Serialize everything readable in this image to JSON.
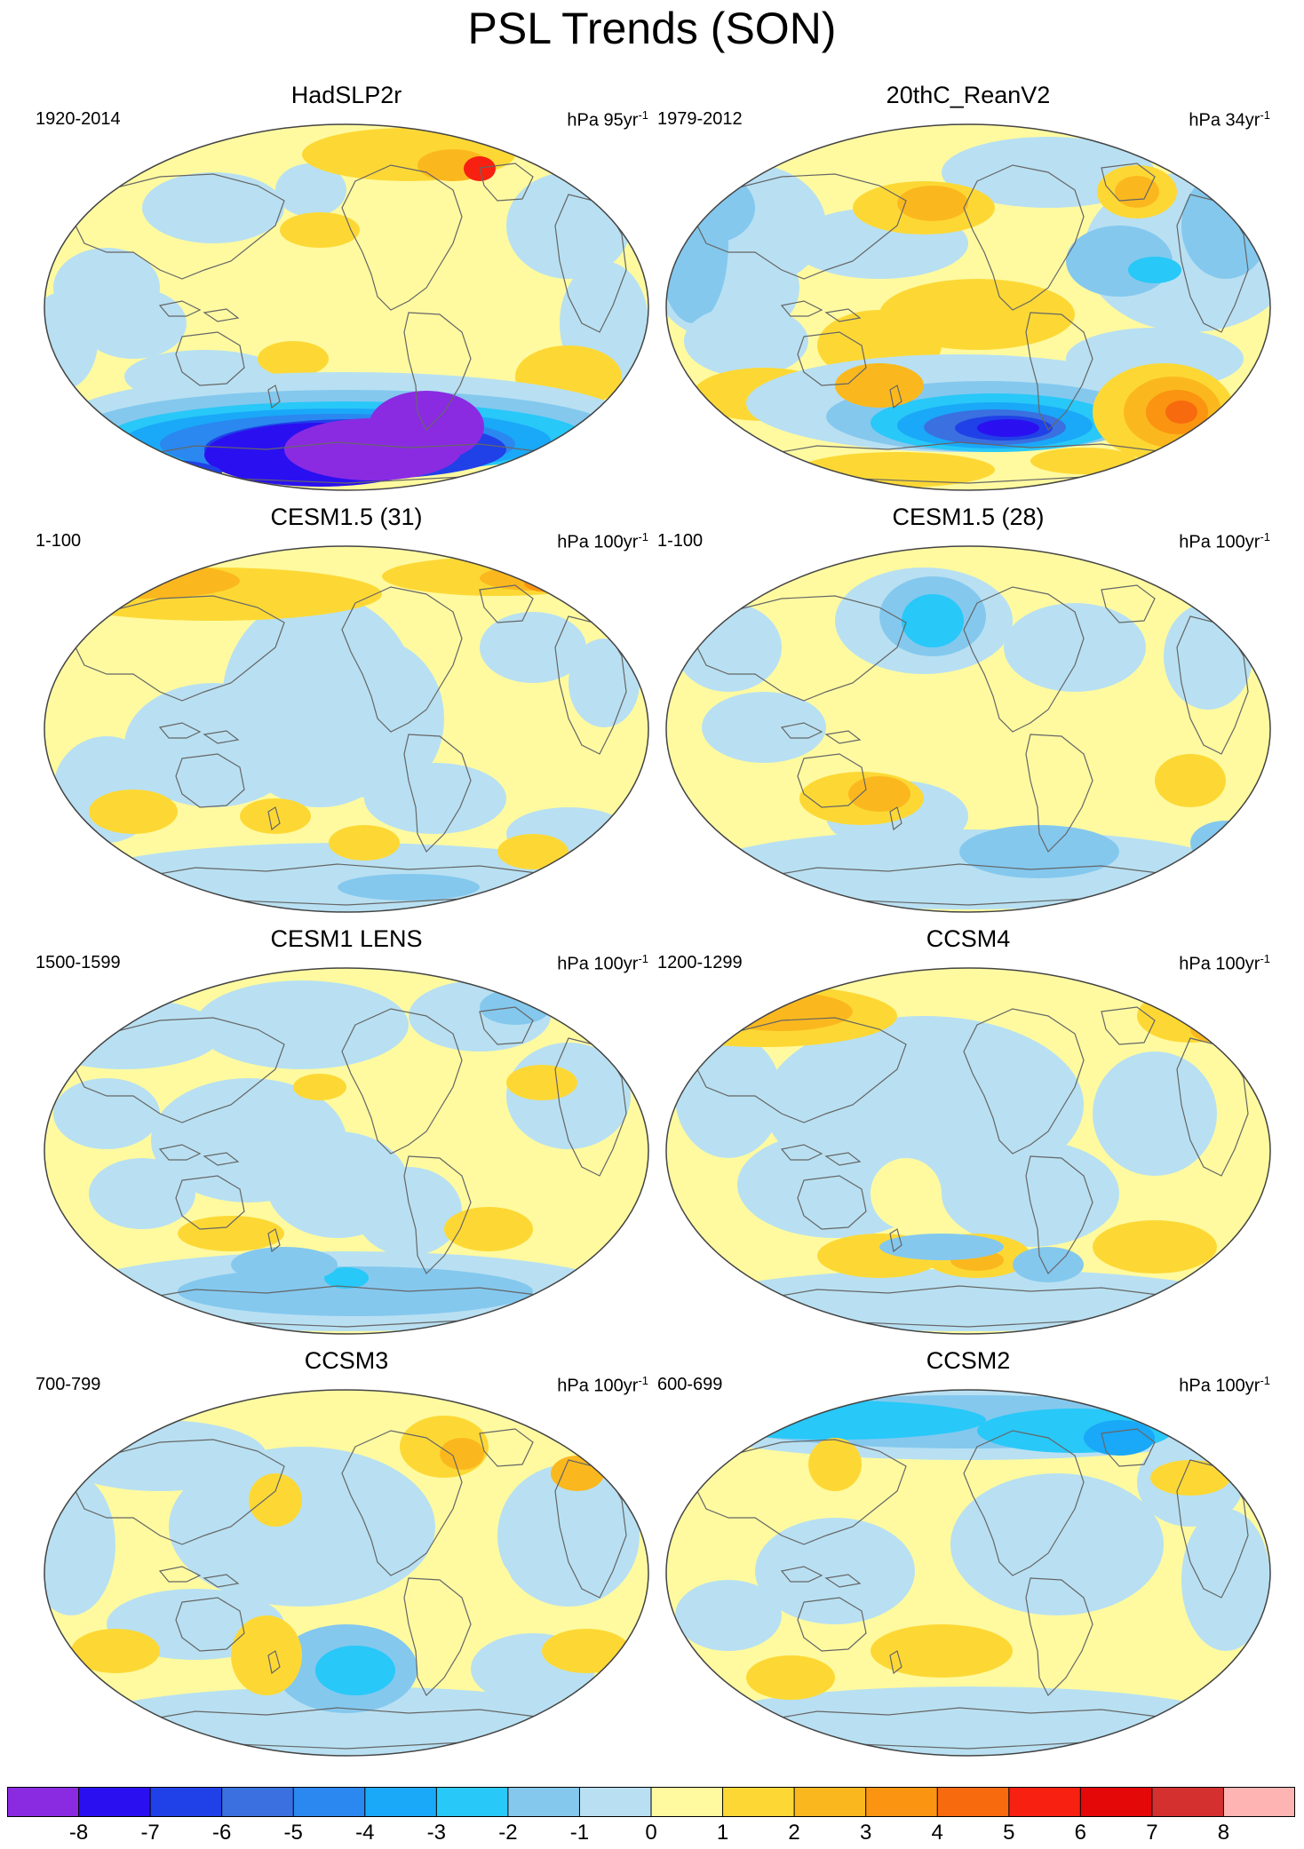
{
  "title": "PSL Trends (SON)",
  "panels": [
    {
      "title": "HadSLP2r",
      "period": "1920-2014",
      "units": "hPa 95yr",
      "units_sup": "-1",
      "pattern": "hadslp"
    },
    {
      "title": "20thC_ReanV2",
      "period": "1979-2012",
      "units": "hPa 34yr",
      "units_sup": "-1",
      "pattern": "rean"
    },
    {
      "title": "CESM1.5 (31)",
      "period": "1-100",
      "units": "hPa 100yr",
      "units_sup": "-1",
      "pattern": "cesm31"
    },
    {
      "title": "CESM1.5 (28)",
      "period": "1-100",
      "units": "hPa 100yr",
      "units_sup": "-1",
      "pattern": "cesm28"
    },
    {
      "title": "CESM1 LENS",
      "period": "1500-1599",
      "units": "hPa 100yr",
      "units_sup": "-1",
      "pattern": "lens"
    },
    {
      "title": "CCSM4",
      "period": "1200-1299",
      "units": "hPa 100yr",
      "units_sup": "-1",
      "pattern": "ccsm4"
    },
    {
      "title": "CCSM3",
      "period": "700-799",
      "units": "hPa 100yr",
      "units_sup": "-1",
      "pattern": "ccsm3"
    },
    {
      "title": "CCSM2",
      "period": "600-699",
      "units": "hPa 100yr",
      "units_sup": "-1",
      "pattern": "ccsm2"
    }
  ],
  "colorbar": {
    "labels": [
      "-8",
      "-7",
      "-6",
      "-5",
      "-4",
      "-3",
      "-2",
      "-1",
      "0",
      "1",
      "2",
      "3",
      "4",
      "5",
      "6",
      "7",
      "8"
    ],
    "colors": [
      "#8a2be2",
      "#2a10f0",
      "#2040e8",
      "#3a70e0",
      "#2a88f0",
      "#1aa8f8",
      "#28c8f8",
      "#84c8ee",
      "#b8e0f2",
      "#fffaa0",
      "#fdd835",
      "#fbb81e",
      "#fb9410",
      "#f86a0e",
      "#f82010",
      "#e40808",
      "#d43030",
      "#ffb4b4"
    ]
  },
  "colors": {
    "land_outline": "#666666",
    "map_border": "#444444"
  }
}
